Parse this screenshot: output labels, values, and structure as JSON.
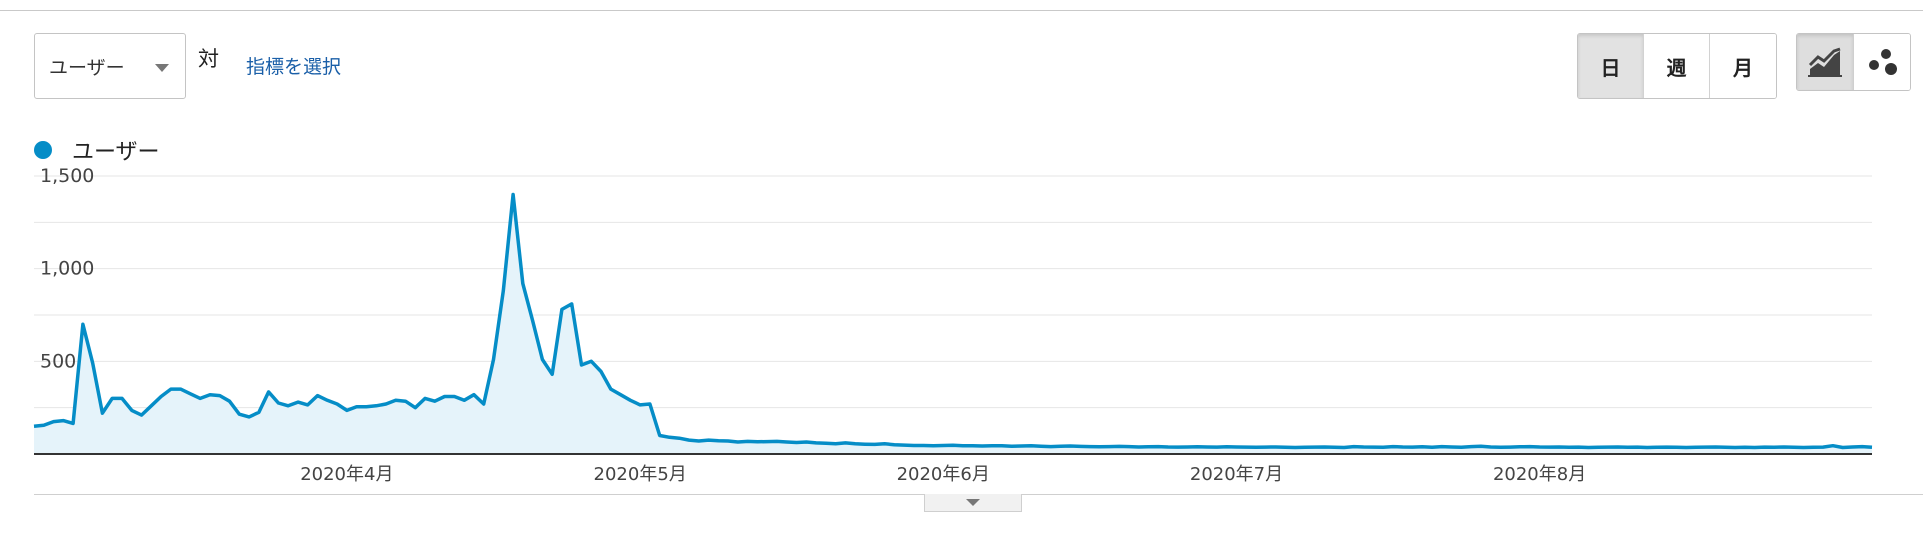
{
  "toolbar": {
    "metric_select_label": "ユーザー",
    "vs_label": "対",
    "pick_metric_label": "指標を選択",
    "periods": [
      {
        "label": "日",
        "active": true
      },
      {
        "label": "週",
        "active": false
      },
      {
        "label": "月",
        "active": false
      }
    ],
    "views": [
      {
        "icon": "line-chart-icon",
        "active": true
      },
      {
        "icon": "motion-chart-icon",
        "active": false
      }
    ]
  },
  "legend": {
    "label": "ユーザー",
    "color": "#058dc7"
  },
  "colors": {
    "line": "#058dc7",
    "fill": "#e5f3fa",
    "grid": "#e6e6e6",
    "axis": "#333333",
    "link": "#1a5fa8"
  },
  "chart_data": {
    "type": "area",
    "series": [
      {
        "name": "ユーザー",
        "values": [
          150,
          155,
          175,
          180,
          165,
          700,
          490,
          220,
          300,
          300,
          235,
          210,
          260,
          310,
          350,
          350,
          325,
          300,
          320,
          315,
          285,
          215,
          200,
          225,
          335,
          275,
          260,
          280,
          265,
          315,
          290,
          270,
          235,
          255,
          255,
          260,
          270,
          290,
          285,
          250,
          300,
          285,
          310,
          310,
          290,
          320,
          270,
          510,
          880,
          1400,
          920,
          720,
          510,
          430,
          780,
          810,
          480,
          500,
          445,
          350,
          320,
          290,
          265,
          270,
          100,
          90,
          85,
          75,
          70,
          75,
          72,
          70,
          65,
          68,
          66,
          67,
          68,
          65,
          62,
          65,
          60,
          58,
          55,
          60,
          55,
          53,
          52,
          55,
          50,
          48,
          46,
          46,
          45,
          46,
          47,
          45,
          44,
          43,
          45,
          44,
          42,
          43,
          44,
          42,
          40,
          42,
          43,
          41,
          40,
          39,
          40,
          41,
          40,
          38,
          39,
          40,
          38,
          37,
          38,
          39,
          38,
          37,
          39,
          38,
          37,
          36,
          37,
          38,
          36,
          35,
          36,
          37,
          38,
          36,
          35,
          40,
          38,
          37,
          36,
          40,
          38,
          37,
          39,
          36,
          40,
          38,
          36,
          40,
          42,
          38,
          36,
          37,
          39,
          40,
          38,
          37,
          38,
          36,
          37,
          35,
          36,
          37,
          38,
          36,
          37,
          35,
          36,
          37,
          36,
          35,
          36,
          37,
          38,
          36,
          35,
          36,
          35,
          37,
          36,
          38,
          36,
          35,
          36,
          37,
          45,
          35,
          38,
          40,
          36
        ]
      }
    ],
    "x_ticks": [
      {
        "label": "2020年4月",
        "index": 32
      },
      {
        "label": "2020年5月",
        "index": 62
      },
      {
        "label": "2020年6月",
        "index": 93
      },
      {
        "label": "2020年7月",
        "index": 123
      },
      {
        "label": "2020年8月",
        "index": 154
      }
    ],
    "y_ticks": [
      500,
      1000,
      1500
    ],
    "ylim": [
      0,
      1500
    ],
    "grid": true
  }
}
